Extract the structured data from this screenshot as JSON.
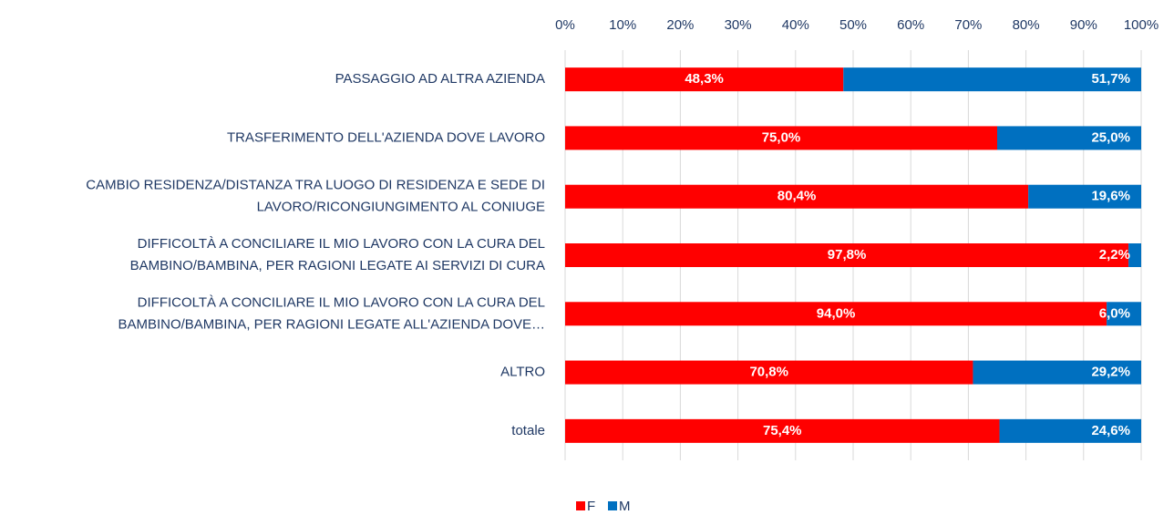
{
  "chart_data": {
    "type": "stacked_barh",
    "categories": [
      "PASSAGGIO AD ALTRA AZIENDA",
      "TRASFERIMENTO DELL'AZIENDA DOVE LAVORO",
      "CAMBIO RESIDENZA/DISTANZA TRA LUOGO DI RESIDENZA E SEDE DI\nLAVORO/RICONGIUNGIMENTO AL CONIUGE",
      "DIFFICOLTÀ A CONCILIARE IL MIO LAVORO CON LA CURA DEL\nBAMBINO/BAMBINA, PER RAGIONI LEGATE AI SERVIZI DI CURA",
      "DIFFICOLTÀ A CONCILIARE IL MIO LAVORO CON LA CURA DEL\nBAMBINO/BAMBINA, PER RAGIONI LEGATE ALL'AZIENDA DOVE…",
      "ALTRO",
      "totale"
    ],
    "series": [
      {
        "name": "F",
        "color": "#ff0000",
        "values": [
          48.3,
          75.0,
          80.4,
          97.8,
          94.0,
          70.8,
          75.4
        ],
        "value_labels": [
          "48,3%",
          "75,0%",
          "80,4%",
          "97,8%",
          "94,0%",
          "70,8%",
          "75,4%"
        ]
      },
      {
        "name": "M",
        "color": "#0070c0",
        "values": [
          51.7,
          25.0,
          19.6,
          2.2,
          6.0,
          29.2,
          24.6
        ],
        "value_labels": [
          "51,7%",
          "25,0%",
          "19,6%",
          "2,2%",
          "6,0%",
          "29,2%",
          "24,6%"
        ]
      }
    ],
    "xlim": [
      0,
      100
    ],
    "xticks": [
      {
        "value": 0,
        "label": "0%"
      },
      {
        "value": 10,
        "label": "10%"
      },
      {
        "value": 20,
        "label": "20%"
      },
      {
        "value": 30,
        "label": "30%"
      },
      {
        "value": 40,
        "label": "40%"
      },
      {
        "value": 50,
        "label": "50%"
      },
      {
        "value": 60,
        "label": "60%"
      },
      {
        "value": 70,
        "label": "70%"
      },
      {
        "value": 80,
        "label": "80%"
      },
      {
        "value": 90,
        "label": "90%"
      },
      {
        "value": 100,
        "label": "100%"
      }
    ],
    "grid": true,
    "legend": "bottom"
  }
}
